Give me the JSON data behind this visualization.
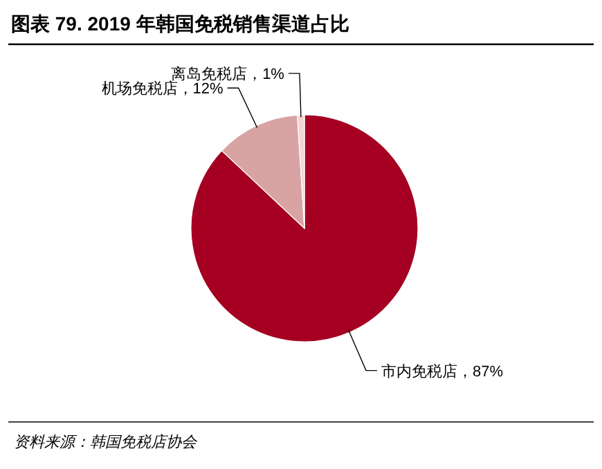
{
  "chart_data": {
    "type": "pie",
    "title": "图表 79. 2019 年韩国免税销售渠道占比",
    "categories": [
      "市内免税店",
      "机场免税店",
      "离岛免税店"
    ],
    "values": [
      87,
      12,
      1
    ],
    "colors": [
      "#a50021",
      "#d9a3a3",
      "#f2d6d6"
    ],
    "value_labels": [
      "87%",
      "12%",
      "1%"
    ],
    "legend": false,
    "annotations": [
      "资料来源：韩国免税店协会"
    ]
  }
}
